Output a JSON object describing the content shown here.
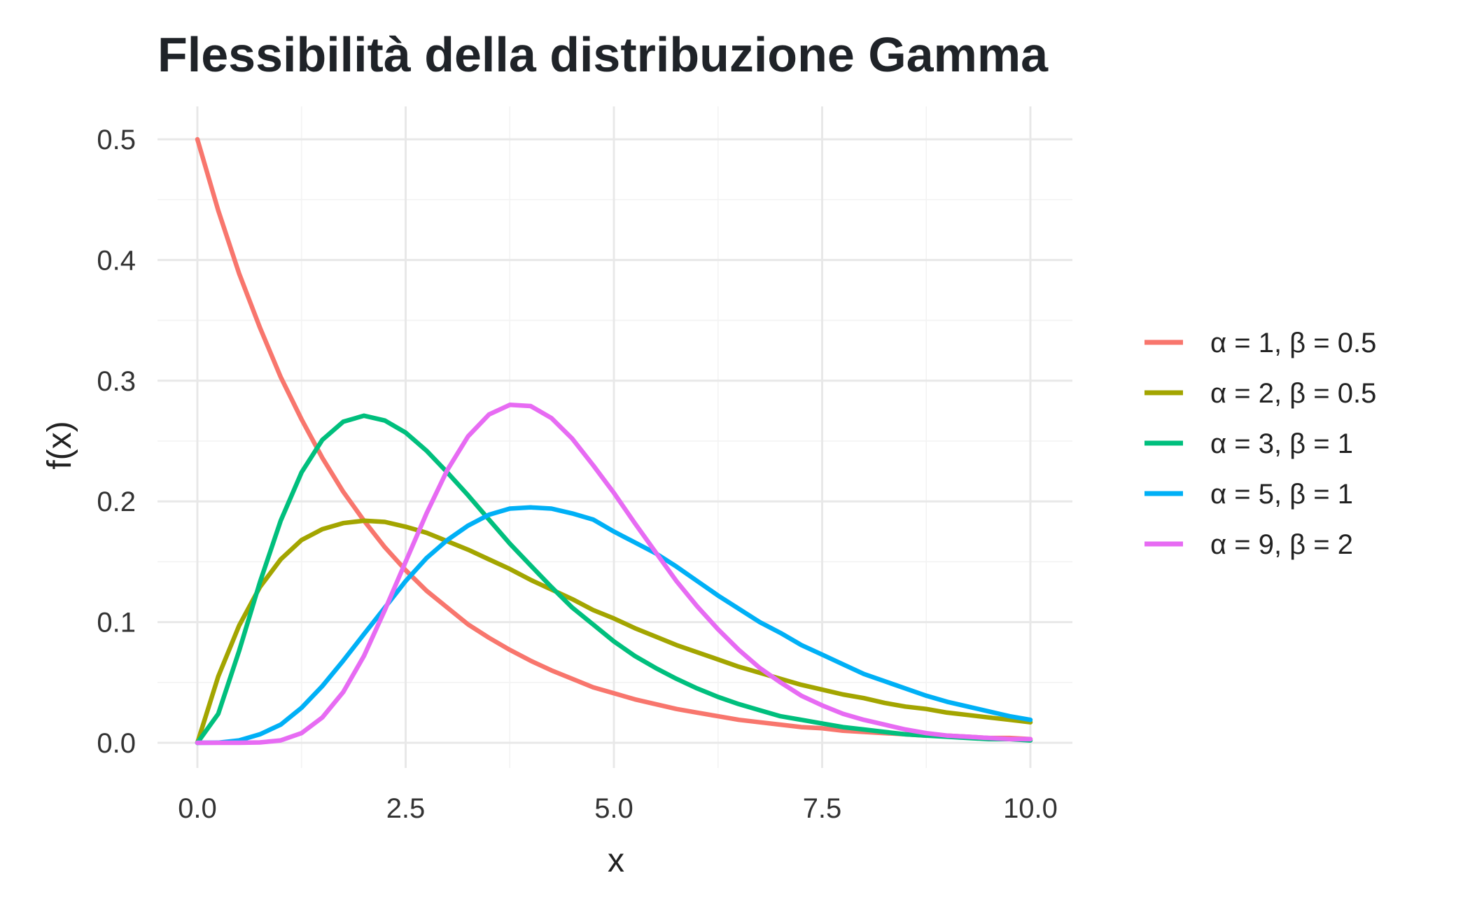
{
  "chart_data": {
    "type": "line",
    "title": "Flessibilità della distribuzione Gamma",
    "xlabel": "x",
    "ylabel": "f(x)",
    "xlim": [
      0,
      10
    ],
    "ylim": [
      0,
      0.5
    ],
    "x_ticks": [
      "0.0",
      "2.5",
      "5.0",
      "7.5",
      "10.0"
    ],
    "y_ticks": [
      "0.0",
      "0.1",
      "0.2",
      "0.3",
      "0.4",
      "0.5"
    ],
    "grid": true,
    "legend_position": "right",
    "x": [
      0,
      0.25,
      0.5,
      0.75,
      1,
      1.25,
      1.5,
      1.75,
      2,
      2.25,
      2.5,
      2.75,
      3,
      3.25,
      3.5,
      3.75,
      4,
      4.25,
      4.5,
      4.75,
      5,
      5.25,
      5.5,
      5.75,
      6,
      6.25,
      6.5,
      6.75,
      7,
      7.25,
      7.5,
      7.75,
      8,
      8.25,
      8.5,
      8.75,
      9,
      9.25,
      9.5,
      9.75,
      10
    ],
    "series": [
      {
        "name": "α = 1, β = 0.5",
        "color": "#F8766D",
        "values": [
          0.5,
          0.441,
          0.389,
          0.344,
          0.303,
          0.268,
          0.236,
          0.208,
          0.184,
          0.162,
          0.143,
          0.126,
          0.112,
          0.098,
          0.087,
          0.077,
          0.068,
          0.06,
          0.053,
          0.046,
          0.041,
          0.036,
          0.032,
          0.028,
          0.025,
          0.022,
          0.019,
          0.017,
          0.015,
          0.013,
          0.012,
          0.01,
          0.009,
          0.008,
          0.007,
          0.006,
          0.006,
          0.005,
          0.004,
          0.004,
          0.003
        ]
      },
      {
        "name": "α = 2, β = 0.5",
        "color": "#A3A500",
        "values": [
          0,
          0.055,
          0.097,
          0.129,
          0.152,
          0.168,
          0.177,
          0.182,
          0.184,
          0.183,
          0.179,
          0.174,
          0.167,
          0.16,
          0.152,
          0.144,
          0.135,
          0.127,
          0.119,
          0.11,
          0.103,
          0.095,
          0.088,
          0.081,
          0.075,
          0.069,
          0.063,
          0.058,
          0.053,
          0.048,
          0.044,
          0.04,
          0.037,
          0.033,
          0.03,
          0.028,
          0.025,
          0.023,
          0.021,
          0.019,
          0.017
        ]
      },
      {
        "name": "α = 3, β = 1",
        "color": "#00BF7D",
        "values": [
          0,
          0.024,
          0.076,
          0.133,
          0.184,
          0.224,
          0.251,
          0.266,
          0.271,
          0.267,
          0.257,
          0.242,
          0.224,
          0.205,
          0.185,
          0.165,
          0.147,
          0.129,
          0.112,
          0.098,
          0.084,
          0.072,
          0.062,
          0.053,
          0.045,
          0.038,
          0.032,
          0.027,
          0.022,
          0.019,
          0.016,
          0.013,
          0.011,
          0.009,
          0.007,
          0.006,
          0.005,
          0.004,
          0.003,
          0.003,
          0.002
        ]
      },
      {
        "name": "α = 5, β = 1",
        "color": "#00B0F6",
        "values": [
          0,
          0.0001,
          0.002,
          0.007,
          0.015,
          0.029,
          0.047,
          0.068,
          0.09,
          0.112,
          0.134,
          0.153,
          0.168,
          0.18,
          0.189,
          0.194,
          0.195,
          0.194,
          0.19,
          0.185,
          0.175,
          0.166,
          0.157,
          0.146,
          0.134,
          0.122,
          0.111,
          0.1,
          0.091,
          0.081,
          0.073,
          0.065,
          0.057,
          0.051,
          0.045,
          0.039,
          0.034,
          0.03,
          0.026,
          0.022,
          0.019
        ]
      },
      {
        "name": "α = 9, β = 2",
        "color": "#E76BF3",
        "values": [
          0,
          0,
          0,
          0.0003,
          0.002,
          0.008,
          0.021,
          0.042,
          0.072,
          0.11,
          0.15,
          0.19,
          0.226,
          0.254,
          0.272,
          0.28,
          0.279,
          0.269,
          0.252,
          0.23,
          0.207,
          0.182,
          0.158,
          0.134,
          0.113,
          0.094,
          0.077,
          0.062,
          0.05,
          0.039,
          0.031,
          0.024,
          0.019,
          0.015,
          0.011,
          0.008,
          0.006,
          0.005,
          0.004,
          0.003,
          0.003
        ]
      }
    ]
  }
}
